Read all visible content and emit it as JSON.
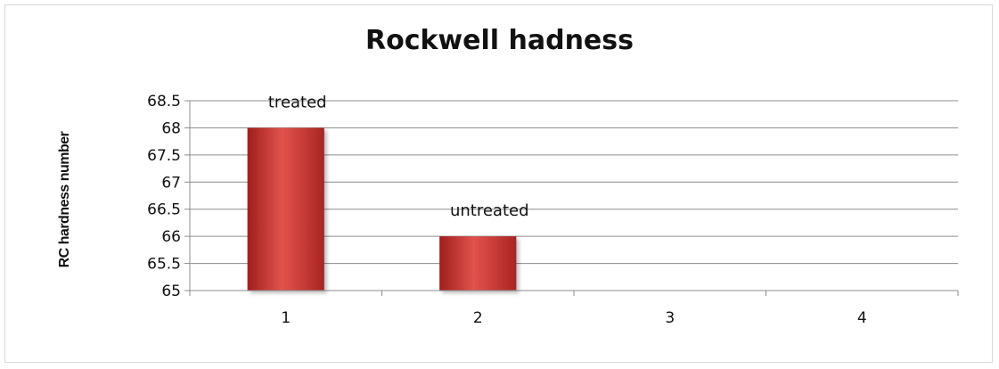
{
  "chart_data": {
    "type": "bar",
    "title": "Rockwell hadness",
    "ylabel": "RC hardness number",
    "xlabel": "",
    "categories": [
      "1",
      "2",
      "3",
      "4"
    ],
    "values": [
      68,
      66,
      null,
      null
    ],
    "data_labels": [
      "treated",
      "untreated",
      "",
      ""
    ],
    "ylim": [
      65,
      68.5
    ],
    "yticks": [
      "65",
      "65.5",
      "66",
      "66.5",
      "67",
      "67.5",
      "68",
      "68.5"
    ],
    "grid": true,
    "legend": "none",
    "bar_color": "#c0302e"
  }
}
